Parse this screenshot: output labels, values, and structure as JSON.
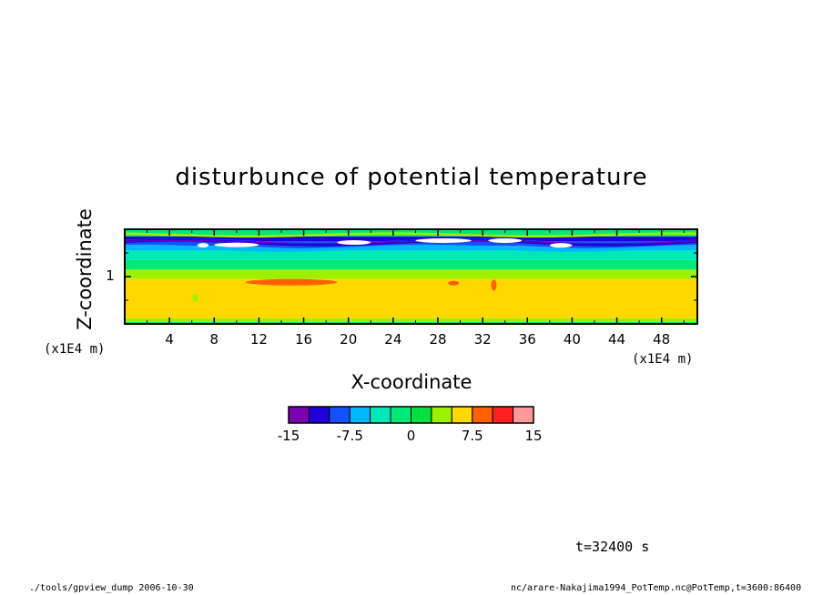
{
  "chart_data": {
    "type": "heatmap",
    "title": "disturbunce of potential temperature",
    "xlabel": "X-coordinate",
    "ylabel": "Z-coordinate",
    "x_unit": "(x1E4 m)",
    "z_unit": "(x1E4 m)",
    "x_ticks": [
      "4",
      "8",
      "12",
      "16",
      "20",
      "24",
      "28",
      "32",
      "36",
      "40",
      "44",
      "48"
    ],
    "z_ticks": [
      "1"
    ],
    "xlim": [
      0,
      51.2
    ],
    "zlim": [
      0,
      2
    ],
    "colorbar": {
      "levels": [
        -15,
        -12.5,
        -10,
        -7.5,
        -5,
        -2.5,
        0,
        2.5,
        5,
        7.5,
        10,
        12.5,
        15
      ],
      "labels": [
        "-15",
        "-7.5",
        "0",
        "7.5",
        "15"
      ],
      "colors": [
        "#7b00b0",
        "#1e00d8",
        "#1550ff",
        "#00b8ff",
        "#00e8b8",
        "#00e878",
        "#00e040",
        "#9cf000",
        "#ffd800",
        "#ff6000",
        "#ff2020",
        "#ff9a9a"
      ]
    },
    "field_bands": [
      {
        "z_range": [
          0.0,
          0.04
        ],
        "level_color": "#00e878"
      },
      {
        "z_range": [
          0.04,
          0.12
        ],
        "level_color": "#9cf000"
      },
      {
        "z_range": [
          0.12,
          0.95
        ],
        "level_color": "#ffd800"
      },
      {
        "z_range": [
          0.95,
          1.15
        ],
        "level_color": "#9cf000"
      },
      {
        "z_range": [
          1.15,
          1.35
        ],
        "level_color": "#00e878"
      },
      {
        "z_range": [
          1.35,
          1.55
        ],
        "level_color": "#00e8b8"
      },
      {
        "z_range": [
          1.55,
          1.65
        ],
        "level_color": "#00b8ff"
      },
      {
        "z_range": [
          1.65,
          1.75
        ],
        "level_color": "#1550ff"
      },
      {
        "z_range": [
          1.75,
          1.85
        ],
        "level_color": "#1e00d8"
      },
      {
        "z_range": [
          1.85,
          2.0
        ],
        "level_color": "#00e878"
      }
    ]
  },
  "annotation": {
    "time": "t=32400 s"
  },
  "footer": {
    "left": "./tools/gpview_dump   2006-10-30",
    "right": "nc/arare-Nakajima1994_PotTemp.nc@PotTemp,t=3600:86400"
  }
}
